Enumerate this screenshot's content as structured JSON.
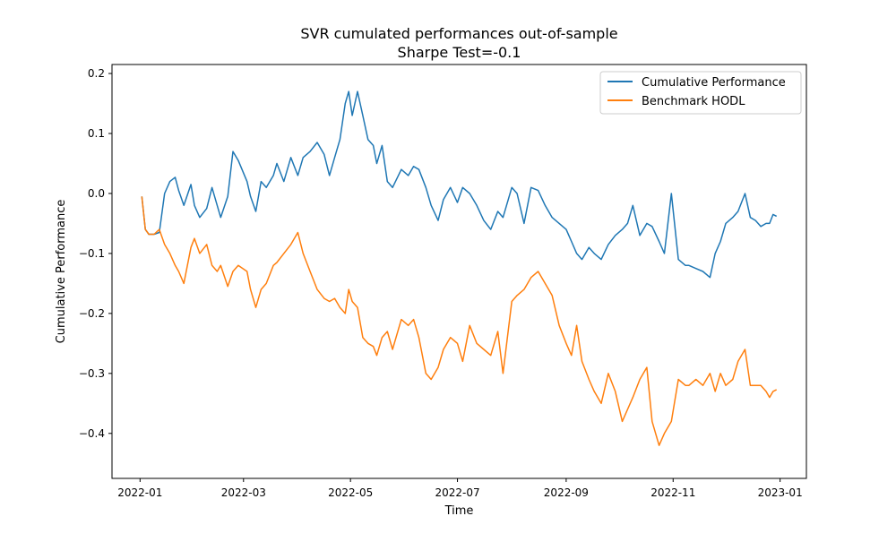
{
  "chart_data": {
    "type": "line",
    "title": "SVR cumulated performances out-of-sample",
    "subtitle": "Sharpe Test=-0.1",
    "xlabel": "Time",
    "ylabel": "Cumulative Performance",
    "xlim": [
      "2021-12-16",
      "2023-01-16"
    ],
    "ylim": [
      -0.475,
      0.215
    ],
    "x_ticks": [
      "2022-01-01",
      "2022-03-01",
      "2022-05-01",
      "2022-07-01",
      "2022-09-01",
      "2022-11-01",
      "2023-01-01"
    ],
    "x_tick_labels": [
      "2022-01",
      "2022-03",
      "2022-05",
      "2022-07",
      "2022-09",
      "2022-11",
      "2023-01"
    ],
    "y_ticks": [
      -0.4,
      -0.3,
      -0.2,
      -0.1,
      0.0,
      0.1,
      0.2
    ],
    "y_tick_labels": [
      "−0.4",
      "−0.3",
      "−0.2",
      "−0.1",
      "0.0",
      "0.1",
      "0.2"
    ],
    "grid": false,
    "legend_position": "top-right",
    "series": [
      {
        "name": "Cumulative Performance",
        "color": "#1f77b4",
        "x": [
          "2022-01-02",
          "2022-01-04",
          "2022-01-06",
          "2022-01-09",
          "2022-01-12",
          "2022-01-15",
          "2022-01-18",
          "2022-01-21",
          "2022-01-23",
          "2022-01-26",
          "2022-01-30",
          "2022-02-01",
          "2022-02-04",
          "2022-02-08",
          "2022-02-11",
          "2022-02-14",
          "2022-02-16",
          "2022-02-20",
          "2022-02-23",
          "2022-02-26",
          "2022-03-03",
          "2022-03-05",
          "2022-03-08",
          "2022-03-11",
          "2022-03-14",
          "2022-03-18",
          "2022-03-20",
          "2022-03-24",
          "2022-03-28",
          "2022-04-01",
          "2022-04-04",
          "2022-04-08",
          "2022-04-12",
          "2022-04-16",
          "2022-04-19",
          "2022-04-22",
          "2022-04-25",
          "2022-04-28",
          "2022-04-30",
          "2022-05-02",
          "2022-05-05",
          "2022-05-08",
          "2022-05-11",
          "2022-05-14",
          "2022-05-16",
          "2022-05-19",
          "2022-05-22",
          "2022-05-25",
          "2022-05-30",
          "2022-06-03",
          "2022-06-06",
          "2022-06-09",
          "2022-06-13",
          "2022-06-16",
          "2022-06-20",
          "2022-06-23",
          "2022-06-27",
          "2022-07-01",
          "2022-07-04",
          "2022-07-08",
          "2022-07-12",
          "2022-07-16",
          "2022-07-20",
          "2022-07-24",
          "2022-07-27",
          "2022-08-01",
          "2022-08-04",
          "2022-08-08",
          "2022-08-12",
          "2022-08-16",
          "2022-08-20",
          "2022-08-24",
          "2022-08-28",
          "2022-09-01",
          "2022-09-04",
          "2022-09-07",
          "2022-09-10",
          "2022-09-14",
          "2022-09-17",
          "2022-09-21",
          "2022-09-25",
          "2022-09-29",
          "2022-10-03",
          "2022-10-06",
          "2022-10-09",
          "2022-10-13",
          "2022-10-17",
          "2022-10-20",
          "2022-10-24",
          "2022-10-27",
          "2022-10-31",
          "2022-11-04",
          "2022-11-08",
          "2022-11-10",
          "2022-11-14",
          "2022-11-18",
          "2022-11-22",
          "2022-11-25",
          "2022-11-28",
          "2022-12-01",
          "2022-12-05",
          "2022-12-08",
          "2022-12-12",
          "2022-12-15",
          "2022-12-18",
          "2022-12-21",
          "2022-12-24",
          "2022-12-26",
          "2022-12-28",
          "2022-12-30"
        ],
        "values": [
          -0.005,
          -0.06,
          -0.068,
          -0.068,
          -0.065,
          0.0,
          0.02,
          0.027,
          0.005,
          -0.02,
          0.015,
          -0.02,
          -0.04,
          -0.025,
          0.01,
          -0.02,
          -0.04,
          -0.005,
          0.07,
          0.055,
          0.02,
          -0.005,
          -0.03,
          0.02,
          0.01,
          0.03,
          0.05,
          0.02,
          0.06,
          0.03,
          0.06,
          0.07,
          0.085,
          0.065,
          0.03,
          0.06,
          0.09,
          0.15,
          0.17,
          0.13,
          0.17,
          0.13,
          0.09,
          0.08,
          0.05,
          0.08,
          0.02,
          0.01,
          0.04,
          0.03,
          0.045,
          0.04,
          0.01,
          -0.02,
          -0.045,
          -0.01,
          0.01,
          -0.015,
          0.01,
          0.0,
          -0.02,
          -0.045,
          -0.06,
          -0.03,
          -0.04,
          0.01,
          0.0,
          -0.05,
          0.01,
          0.005,
          -0.02,
          -0.04,
          -0.05,
          -0.06,
          -0.08,
          -0.1,
          -0.11,
          -0.09,
          -0.1,
          -0.11,
          -0.085,
          -0.07,
          -0.06,
          -0.05,
          -0.02,
          -0.07,
          -0.05,
          -0.055,
          -0.08,
          -0.1,
          0.0,
          -0.11,
          -0.12,
          -0.12,
          -0.125,
          -0.13,
          -0.14,
          -0.1,
          -0.08,
          -0.05,
          -0.04,
          -0.03,
          0.0,
          -0.04,
          -0.045,
          -0.055,
          -0.05,
          -0.05,
          -0.035,
          -0.038
        ]
      },
      {
        "name": "Benchmark HODL",
        "color": "#ff7f0e",
        "x": [
          "2022-01-02",
          "2022-01-04",
          "2022-01-06",
          "2022-01-09",
          "2022-01-12",
          "2022-01-15",
          "2022-01-18",
          "2022-01-21",
          "2022-01-23",
          "2022-01-26",
          "2022-01-30",
          "2022-02-01",
          "2022-02-04",
          "2022-02-08",
          "2022-02-11",
          "2022-02-14",
          "2022-02-16",
          "2022-02-20",
          "2022-02-23",
          "2022-02-26",
          "2022-03-03",
          "2022-03-05",
          "2022-03-08",
          "2022-03-11",
          "2022-03-14",
          "2022-03-18",
          "2022-03-20",
          "2022-03-24",
          "2022-03-28",
          "2022-04-01",
          "2022-04-04",
          "2022-04-08",
          "2022-04-12",
          "2022-04-16",
          "2022-04-19",
          "2022-04-22",
          "2022-04-25",
          "2022-04-28",
          "2022-04-30",
          "2022-05-02",
          "2022-05-05",
          "2022-05-08",
          "2022-05-11",
          "2022-05-14",
          "2022-05-16",
          "2022-05-19",
          "2022-05-22",
          "2022-05-25",
          "2022-05-30",
          "2022-06-03",
          "2022-06-06",
          "2022-06-09",
          "2022-06-13",
          "2022-06-16",
          "2022-06-20",
          "2022-06-23",
          "2022-06-27",
          "2022-07-01",
          "2022-07-04",
          "2022-07-08",
          "2022-07-12",
          "2022-07-16",
          "2022-07-20",
          "2022-07-24",
          "2022-07-27",
          "2022-08-01",
          "2022-08-04",
          "2022-08-08",
          "2022-08-12",
          "2022-08-16",
          "2022-08-20",
          "2022-08-24",
          "2022-08-28",
          "2022-09-01",
          "2022-09-04",
          "2022-09-07",
          "2022-09-10",
          "2022-09-14",
          "2022-09-17",
          "2022-09-21",
          "2022-09-25",
          "2022-09-29",
          "2022-10-03",
          "2022-10-06",
          "2022-10-09",
          "2022-10-13",
          "2022-10-17",
          "2022-10-20",
          "2022-10-24",
          "2022-10-27",
          "2022-10-31",
          "2022-11-04",
          "2022-11-08",
          "2022-11-10",
          "2022-11-14",
          "2022-11-18",
          "2022-11-22",
          "2022-11-25",
          "2022-11-28",
          "2022-12-01",
          "2022-12-05",
          "2022-12-08",
          "2022-12-12",
          "2022-12-15",
          "2022-12-18",
          "2022-12-21",
          "2022-12-24",
          "2022-12-26",
          "2022-12-28",
          "2022-12-30"
        ],
        "values": [
          -0.005,
          -0.06,
          -0.068,
          -0.068,
          -0.06,
          -0.085,
          -0.1,
          -0.12,
          -0.13,
          -0.15,
          -0.09,
          -0.075,
          -0.1,
          -0.085,
          -0.12,
          -0.13,
          -0.12,
          -0.155,
          -0.13,
          -0.12,
          -0.13,
          -0.16,
          -0.19,
          -0.16,
          -0.15,
          -0.12,
          -0.115,
          -0.1,
          -0.085,
          -0.065,
          -0.1,
          -0.13,
          -0.16,
          -0.175,
          -0.18,
          -0.175,
          -0.19,
          -0.2,
          -0.16,
          -0.18,
          -0.19,
          -0.24,
          -0.25,
          -0.255,
          -0.27,
          -0.24,
          -0.23,
          -0.26,
          -0.21,
          -0.22,
          -0.21,
          -0.24,
          -0.3,
          -0.31,
          -0.29,
          -0.26,
          -0.24,
          -0.25,
          -0.28,
          -0.22,
          -0.25,
          -0.26,
          -0.27,
          -0.23,
          -0.3,
          -0.18,
          -0.17,
          -0.16,
          -0.14,
          -0.13,
          -0.15,
          -0.17,
          -0.22,
          -0.25,
          -0.27,
          -0.22,
          -0.28,
          -0.31,
          -0.33,
          -0.35,
          -0.3,
          -0.33,
          -0.38,
          -0.36,
          -0.34,
          -0.31,
          -0.29,
          -0.38,
          -0.42,
          -0.4,
          -0.38,
          -0.31,
          -0.32,
          -0.32,
          -0.31,
          -0.32,
          -0.3,
          -0.33,
          -0.3,
          -0.32,
          -0.31,
          -0.28,
          -0.26,
          -0.32,
          -0.32,
          -0.32,
          -0.33,
          -0.34,
          -0.33,
          -0.327
        ]
      }
    ]
  }
}
